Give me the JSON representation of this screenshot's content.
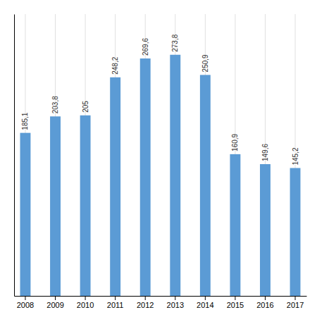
{
  "chart_data": {
    "type": "bar",
    "categories": [
      "2008",
      "2009",
      "2010",
      "2011",
      "2012",
      "2013",
      "2014",
      "2015",
      "2016",
      "2017"
    ],
    "values": [
      185.1,
      203.8,
      205.0,
      248.2,
      269.6,
      273.8,
      250.9,
      160.9,
      149.6,
      145.2
    ],
    "value_labels": [
      "185,1",
      "203,8",
      "205",
      "248,2",
      "269,6",
      "273,8",
      "250,9",
      "160,9",
      "149,6",
      "145,2"
    ],
    "color": "#5b9bd5",
    "ylim": [
      0,
      320
    ],
    "grid": true,
    "data_labels": true,
    "tick_labels": "x"
  }
}
